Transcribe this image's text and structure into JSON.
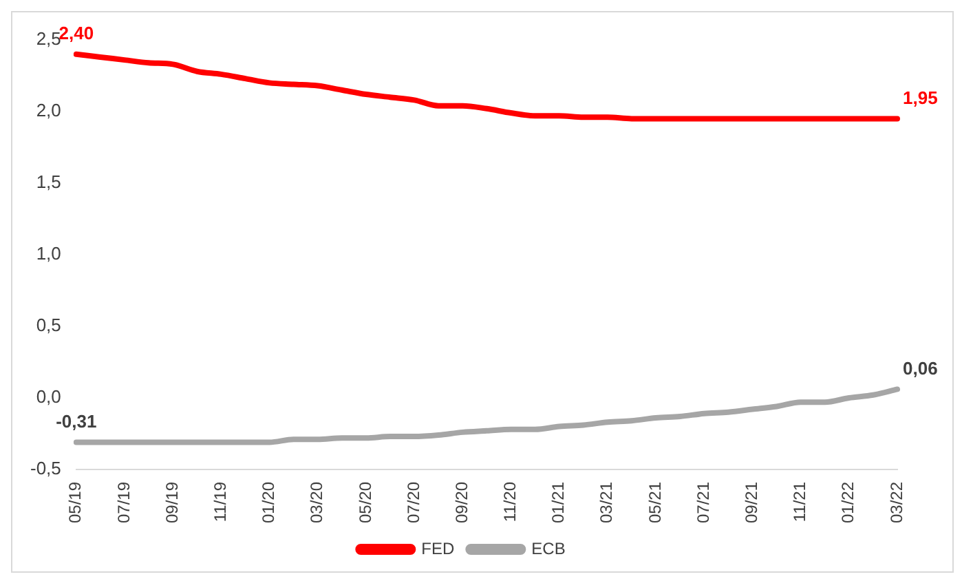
{
  "chart_data": {
    "type": "line",
    "categories": [
      "05/19",
      null,
      "07/19",
      null,
      "09/19",
      null,
      "11/19",
      null,
      "01/20",
      null,
      "03/20",
      null,
      "05/20",
      null,
      "07/20",
      null,
      "09/20",
      null,
      "11/20",
      null,
      "01/21",
      null,
      "03/21",
      null,
      "05/21",
      null,
      "07/21",
      null,
      "09/21",
      null,
      "11/21",
      null,
      "01/22",
      null,
      "03/22"
    ],
    "series": [
      {
        "name": "FED",
        "color": "#ff0000",
        "values": [
          2.4,
          2.38,
          2.36,
          2.34,
          2.33,
          2.28,
          2.26,
          2.23,
          2.2,
          2.19,
          2.18,
          2.15,
          2.12,
          2.1,
          2.08,
          2.04,
          2.04,
          2.02,
          1.99,
          1.97,
          1.97,
          1.96,
          1.96,
          1.95,
          1.95,
          1.95,
          1.95,
          1.95,
          1.95,
          1.95,
          1.95,
          1.95,
          1.95,
          1.95,
          1.95
        ],
        "value_labels": [
          "2,40",
          null,
          null,
          null,
          null,
          null,
          null,
          null,
          null,
          null,
          null,
          null,
          null,
          null,
          null,
          null,
          null,
          null,
          null,
          null,
          null,
          null,
          null,
          null,
          null,
          null,
          null,
          null,
          null,
          null,
          null,
          null,
          null,
          null,
          "1,95"
        ]
      },
      {
        "name": "ECB",
        "color": "#a6a6a6",
        "values": [
          -0.31,
          -0.31,
          -0.31,
          -0.31,
          -0.31,
          -0.31,
          -0.31,
          -0.31,
          -0.31,
          -0.29,
          -0.29,
          -0.28,
          -0.28,
          -0.27,
          -0.27,
          -0.26,
          -0.24,
          -0.23,
          -0.22,
          -0.22,
          -0.2,
          -0.19,
          -0.17,
          -0.16,
          -0.14,
          -0.13,
          -0.11,
          -0.1,
          -0.08,
          -0.06,
          -0.03,
          -0.03,
          0.0,
          0.02,
          0.06
        ],
        "value_labels": [
          "-0,31",
          null,
          null,
          null,
          null,
          null,
          null,
          null,
          null,
          null,
          null,
          null,
          null,
          null,
          null,
          null,
          null,
          null,
          null,
          null,
          null,
          null,
          null,
          null,
          null,
          null,
          null,
          null,
          null,
          null,
          null,
          null,
          null,
          null,
          "0,06"
        ]
      }
    ],
    "ylim": [
      -0.5,
      2.5
    ],
    "yticks": [
      {
        "value": -0.5,
        "label": "-0,5"
      },
      {
        "value": 0,
        "label": "0,0"
      },
      {
        "value": 0.5,
        "label": "0,5"
      },
      {
        "value": 1,
        "label": "1,0"
      },
      {
        "value": 1.5,
        "label": "1,5"
      },
      {
        "value": 2,
        "label": "2,0"
      },
      {
        "value": 2.5,
        "label": "2,5"
      }
    ],
    "grid": false,
    "legend": "bottom",
    "marker": "none",
    "line_style": "solid"
  }
}
